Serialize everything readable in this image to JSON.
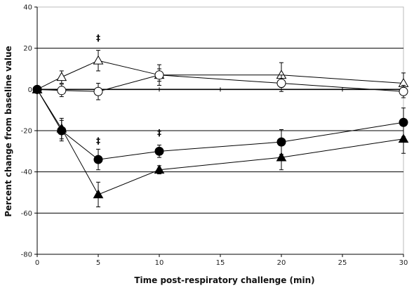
{
  "chart_data": {
    "type": "line",
    "title": "",
    "xlabel": "Time post-respiratory challenge (min)",
    "ylabel": "Percent change from baseline value",
    "xlim": [
      0,
      30
    ],
    "ylim": [
      -80,
      40
    ],
    "x_ticks": [
      "0",
      "5",
      "10",
      "15",
      "20",
      "25",
      "30"
    ],
    "y_ticks": [
      "-80",
      "-60",
      "-40",
      "-20",
      "0",
      "20",
      "40"
    ],
    "grid": "horizontal major gridlines",
    "legend": "none",
    "x": [
      0,
      2,
      5,
      10,
      20,
      30
    ],
    "series": [
      {
        "marker": "open-triangle",
        "values": [
          0,
          6,
          14,
          7,
          7,
          3
        ],
        "error": [
          0,
          3,
          5,
          5,
          6,
          5
        ]
      },
      {
        "marker": "open-circle",
        "values": [
          0,
          -0.5,
          -1,
          7,
          3,
          -1
        ],
        "error": [
          0,
          3,
          4,
          3,
          4,
          3
        ]
      },
      {
        "marker": "filled-circle",
        "values": [
          0,
          -20,
          -34,
          -30,
          -25.5,
          -16
        ],
        "error": [
          0,
          5,
          5,
          3,
          6,
          7
        ]
      },
      {
        "marker": "filled-triangle",
        "values": [
          0,
          -19,
          -51,
          -39,
          -33,
          -24
        ],
        "error": [
          0,
          5,
          6,
          2,
          6,
          7
        ]
      }
    ],
    "annotations": [
      {
        "text": "‡",
        "x": 5,
        "y": 25
      },
      {
        "text": "‡",
        "x": 5,
        "y": -25
      },
      {
        "text": "‡",
        "x": 10,
        "y": -21
      }
    ]
  }
}
